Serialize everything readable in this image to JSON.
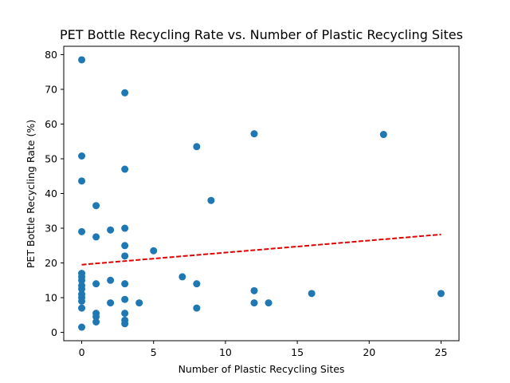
{
  "chart_data": {
    "type": "scatter",
    "title": "PET Bottle Recycling Rate vs. Number of Plastic Recycling Sites",
    "xlabel": "Number of Plastic Recycling Sites",
    "ylabel": "PET Bottle Recycling Rate (%)",
    "xlim": [
      -1.25,
      26.25
    ],
    "ylim": [
      -2.4,
      82.4
    ],
    "xticks": [
      0,
      5,
      10,
      15,
      20,
      25
    ],
    "yticks": [
      0,
      10,
      20,
      30,
      40,
      50,
      60,
      70,
      80
    ],
    "grid": false,
    "colors": {
      "points": "#1f77b4",
      "trendline": "#e00000"
    },
    "series": [
      {
        "points": [
          [
            0,
            78.5
          ],
          [
            0,
            50.8
          ],
          [
            0,
            43.6
          ],
          [
            0,
            29.0
          ],
          [
            0,
            17.0
          ],
          [
            0,
            16.0
          ],
          [
            0,
            15.0
          ],
          [
            0,
            13.5
          ],
          [
            0,
            12.5
          ],
          [
            0,
            11.0
          ],
          [
            0,
            10.0
          ],
          [
            0,
            9.0
          ],
          [
            0,
            7.0
          ],
          [
            0,
            1.5
          ],
          [
            1,
            36.5
          ],
          [
            1,
            27.5
          ],
          [
            1,
            14.0
          ],
          [
            1,
            5.5
          ],
          [
            1,
            4.5
          ],
          [
            1,
            3.0
          ],
          [
            2,
            29.5
          ],
          [
            2,
            15.0
          ],
          [
            2,
            8.5
          ],
          [
            3,
            69.0
          ],
          [
            3,
            47.0
          ],
          [
            3,
            30.0
          ],
          [
            3,
            25.0
          ],
          [
            3,
            22.0
          ],
          [
            3,
            14.0
          ],
          [
            3,
            9.5
          ],
          [
            3,
            5.5
          ],
          [
            3,
            3.5
          ],
          [
            3,
            2.5
          ],
          [
            4,
            8.5
          ],
          [
            5,
            23.5
          ],
          [
            7,
            16.0
          ],
          [
            8,
            53.5
          ],
          [
            8,
            14.0
          ],
          [
            8,
            7.0
          ],
          [
            9,
            38.0
          ],
          [
            12,
            57.2
          ],
          [
            12,
            12.0
          ],
          [
            12,
            8.5
          ],
          [
            13,
            8.5
          ],
          [
            16,
            11.2
          ],
          [
            21,
            57.0
          ],
          [
            25,
            11.2
          ]
        ]
      }
    ],
    "trendline": {
      "x": [
        0,
        25
      ],
      "y": [
        19.5,
        28.2
      ]
    }
  }
}
